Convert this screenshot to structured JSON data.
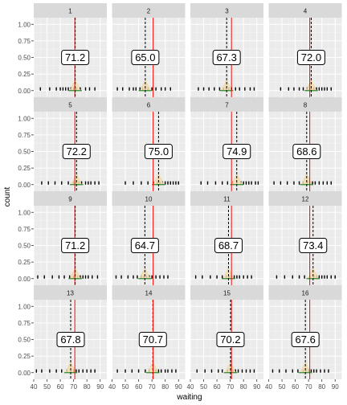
{
  "chart_data": {
    "type": "facet-histogram",
    "xlabel": "waiting",
    "ylabel": "count",
    "xlim": [
      40,
      95
    ],
    "ylim": [
      -0.1,
      1.1
    ],
    "xticks": [
      40,
      50,
      60,
      70,
      80,
      90
    ],
    "yticks": [
      0.0,
      0.25,
      0.5,
      0.75,
      1.0
    ],
    "ytick_labels": [
      "0.00",
      "0.25",
      "0.50",
      "0.75",
      "1.00"
    ],
    "reference_line": 70.9,
    "grid": true,
    "colors": {
      "reference_line": "#ff0000",
      "sample_mean_line": "#000000",
      "panel_bg": "#ebebeb",
      "strip_bg": "#d9d9d9",
      "density": "#f5deb3",
      "density_base": "#2e8b2e"
    },
    "panels": [
      {
        "id": "1",
        "label": "71.2",
        "mean": 71.2,
        "points": [
          45,
          52,
          57,
          60,
          62,
          64,
          66,
          68,
          70,
          72,
          75,
          79,
          82,
          86
        ]
      },
      {
        "id": "2",
        "label": "65.0",
        "mean": 65.0,
        "points": [
          44,
          48,
          53,
          56,
          58,
          61,
          63,
          65,
          67,
          70,
          73,
          77,
          80,
          84
        ]
      },
      {
        "id": "3",
        "label": "67.3",
        "mean": 67.3,
        "points": [
          46,
          50,
          54,
          58,
          62,
          65,
          67,
          69,
          71,
          74,
          77,
          81,
          85,
          88
        ]
      },
      {
        "id": "4",
        "label": "72.0",
        "mean": 72.0,
        "points": [
          49,
          55,
          59,
          63,
          66,
          69,
          72,
          74,
          76,
          78,
          80,
          82,
          84,
          87
        ]
      },
      {
        "id": "5",
        "label": "72.2",
        "mean": 72.2,
        "points": [
          46,
          51,
          56,
          61,
          66,
          70,
          72,
          74,
          76,
          79,
          81,
          83,
          86,
          89
        ]
      },
      {
        "id": "6",
        "label": "75.0",
        "mean": 75.0,
        "points": [
          50,
          56,
          62,
          67,
          71,
          74,
          76,
          78,
          80,
          82,
          84,
          86,
          88,
          90
        ]
      },
      {
        "id": "7",
        "label": "74.9",
        "mean": 74.9,
        "points": [
          48,
          53,
          59,
          64,
          68,
          72,
          75,
          78,
          80,
          82,
          84,
          86,
          89,
          91
        ]
      },
      {
        "id": "8",
        "label": "68.6",
        "mean": 68.6,
        "points": [
          44,
          49,
          54,
          59,
          63,
          66,
          69,
          71,
          73,
          75,
          78,
          81,
          84,
          87
        ]
      },
      {
        "id": "9",
        "label": "71.2",
        "mean": 71.2,
        "points": [
          43,
          48,
          54,
          59,
          63,
          67,
          70,
          73,
          75,
          77,
          79,
          81,
          84,
          88
        ]
      },
      {
        "id": "10",
        "label": "64.7",
        "mean": 64.7,
        "points": [
          43,
          47,
          52,
          56,
          59,
          62,
          64,
          66,
          68,
          70,
          73,
          76,
          79,
          82
        ]
      },
      {
        "id": "11",
        "label": "68.7",
        "mean": 68.7,
        "points": [
          44,
          49,
          55,
          60,
          64,
          67,
          69,
          71,
          73,
          75,
          77,
          80,
          83,
          86
        ]
      },
      {
        "id": "12",
        "label": "73.4",
        "mean": 73.4,
        "points": [
          46,
          52,
          58,
          63,
          67,
          71,
          74,
          76,
          78,
          80,
          82,
          84,
          87,
          90
        ]
      },
      {
        "id": "13",
        "label": "67.8",
        "mean": 67.8,
        "points": [
          42,
          46,
          52,
          57,
          61,
          65,
          68,
          70,
          72,
          74,
          77,
          80,
          83,
          86
        ]
      },
      {
        "id": "14",
        "label": "70.7",
        "mean": 70.7,
        "points": [
          44,
          50,
          55,
          60,
          65,
          68,
          71,
          73,
          75,
          77,
          80,
          82,
          85,
          88
        ]
      },
      {
        "id": "15",
        "label": "70.2",
        "mean": 70.2,
        "points": [
          45,
          51,
          56,
          61,
          64,
          68,
          70,
          72,
          74,
          76,
          79,
          82,
          85,
          88
        ]
      },
      {
        "id": "16",
        "label": "67.6",
        "mean": 67.6,
        "points": [
          43,
          48,
          53,
          58,
          62,
          66,
          68,
          70,
          72,
          74,
          76,
          79,
          82,
          85
        ]
      }
    ]
  }
}
